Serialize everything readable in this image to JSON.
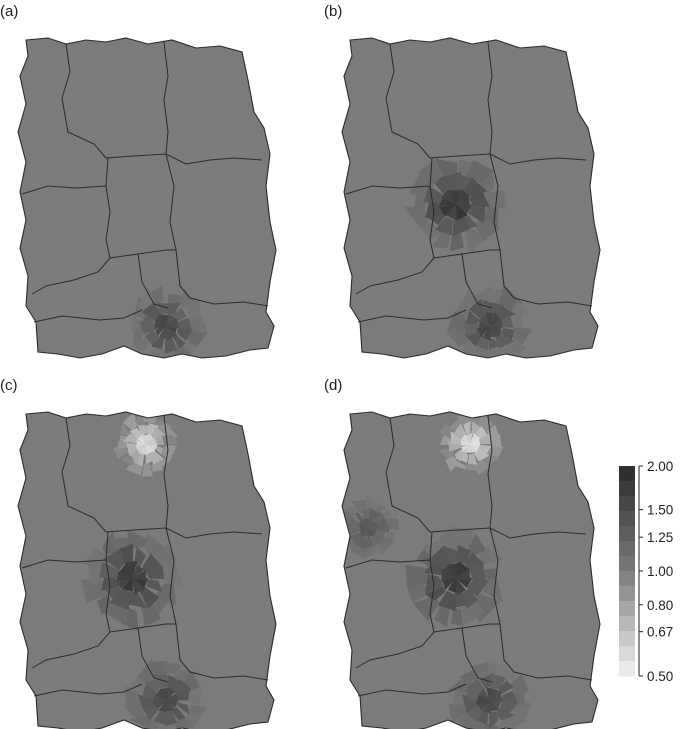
{
  "panels": [
    {
      "label": "(a)",
      "hotspots": [
        {
          "region": "south",
          "value": 1.6
        }
      ]
    },
    {
      "label": "(b)",
      "hotspots": [
        {
          "region": "center",
          "value": 1.8
        },
        {
          "region": "south",
          "value": 1.6
        }
      ]
    },
    {
      "label": "(c)",
      "hotspots": [
        {
          "region": "north",
          "value": 0.55
        },
        {
          "region": "center",
          "value": 1.8
        },
        {
          "region": "south",
          "value": 1.6
        }
      ]
    },
    {
      "label": "(d)",
      "hotspots": [
        {
          "region": "north",
          "value": 0.55
        },
        {
          "region": "west",
          "value": 1.4
        },
        {
          "region": "center",
          "value": 1.8
        },
        {
          "region": "south",
          "value": 1.6
        }
      ]
    }
  ],
  "baseline_value": 1.0,
  "legend": {
    "ticks": [
      "2.00",
      "1.50",
      "1.25",
      "1.00",
      "0.80",
      "0.67",
      "0.50"
    ],
    "tick_values": [
      2.0,
      1.5,
      1.25,
      1.0,
      0.8,
      0.67,
      0.5
    ],
    "scale": "log",
    "range": [
      0.5,
      2.0
    ]
  },
  "colors": {
    "background": "#ffffff",
    "boundary": "#2b2b2b",
    "low": "#f2f2f2",
    "mid": "#7b7b7b",
    "high": "#2a2a2a"
  }
}
